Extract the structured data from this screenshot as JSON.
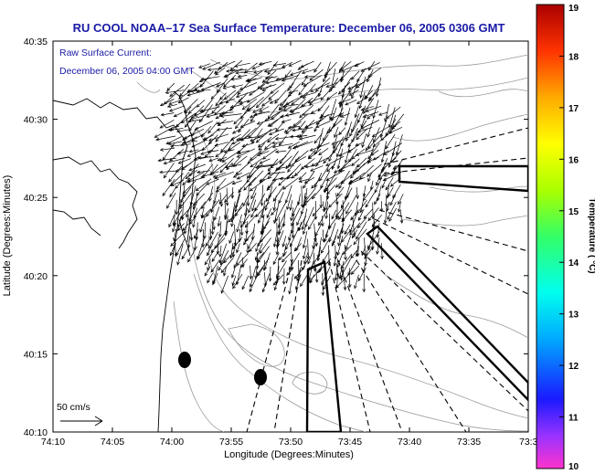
{
  "title": "RU COOL  NOAA–17  Sea Surface Temperature:  December 06, 2005 0306 GMT",
  "overlay": {
    "line1": "Raw Surface Current:",
    "line2": "December 06, 2005 04:00 GMT"
  },
  "scale_label": "50 cm/s",
  "axes": {
    "xlabel": "Longitude (Degrees:Minutes)",
    "ylabel": "Latitude (Degrees:Minutes)",
    "xticks": [
      "74:10",
      "74:05",
      "74:00",
      "73:55",
      "73:50",
      "73:45",
      "73:40",
      "73:35",
      "73:3"
    ],
    "yticks": [
      "40:35",
      "40:30",
      "40:25",
      "40:20",
      "40:15",
      "40:10"
    ]
  },
  "colorbar": {
    "label": "Temperature ( °C)",
    "ticks": [
      "19",
      "18",
      "17",
      "16",
      "15",
      "14",
      "13",
      "12",
      "11",
      "10"
    ],
    "min": 10,
    "max": 19,
    "colors": [
      "#ff33cc",
      "#9933ff",
      "#1a1aff",
      "#00aaff",
      "#00ffee",
      "#33ff66",
      "#aaff00",
      "#ffff00",
      "#ffaa00",
      "#ff3300",
      "#aa0000"
    ]
  },
  "colors": {
    "text_blue": "#1a1aa6",
    "land_edge": "#000000",
    "bathymetry": "#999999"
  }
}
